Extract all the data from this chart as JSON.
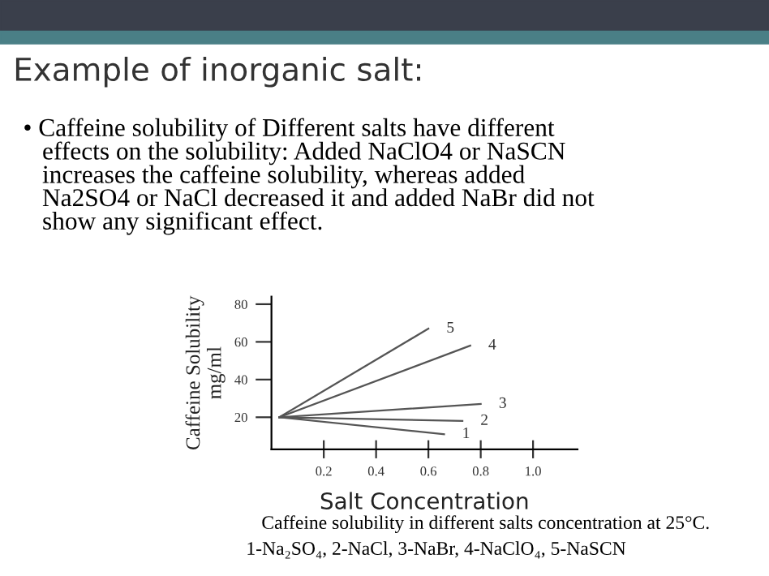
{
  "chart_data": {
    "type": "line",
    "title": "Example of inorganic salt:",
    "subtitle": "• Caffeine solubility of Different salts have different\n   effects on the solubility: Added NaClO4 or NaSCN\n   increases the caffeine solubility, whereas added\n   Na2SO4 or NaCl decreased it and added NaBr did not\n   show any significant effect.",
    "xlabel": "Salt Concentration",
    "ylabel": "Caffeine Solubility\nmg/ml",
    "annotations": [
      "Caffeine solubility in different salts concentration at 25°C.",
      "1-Na₂SO₄, 2-NaCl, 3-NaBr, 4-NaClO₄, 5-NaSCN"
    ],
    "series": [
      {
        "name": "1",
        "color": "#555555",
        "x": [
          0.03,
          0.66
        ],
        "values": [
          20,
          11
        ]
      },
      {
        "name": "2",
        "color": "#555555",
        "x": [
          0.03,
          0.73
        ],
        "values": [
          20,
          18
        ]
      },
      {
        "name": "3",
        "color": "#555555",
        "x": [
          0.03,
          0.8
        ],
        "values": [
          20,
          27
        ]
      },
      {
        "name": "4",
        "color": "#555555",
        "x": [
          0.03,
          0.76
        ],
        "values": [
          20,
          58
        ]
      },
      {
        "name": "5",
        "color": "#555555",
        "x": [
          0.03,
          0.6
        ],
        "values": [
          20,
          67
        ]
      }
    ],
    "xlim": [
      0,
      1.17
    ],
    "ylim": [
      3,
      84
    ],
    "xticks": [
      0.2,
      0.4,
      0.6,
      0.8,
      {
        "value": 1.0,
        "label": "1.0"
      }
    ],
    "yticks": [
      20,
      40,
      60,
      80
    ],
    "grid": false,
    "legend": false,
    "marker": "none",
    "line_style": "solid"
  }
}
